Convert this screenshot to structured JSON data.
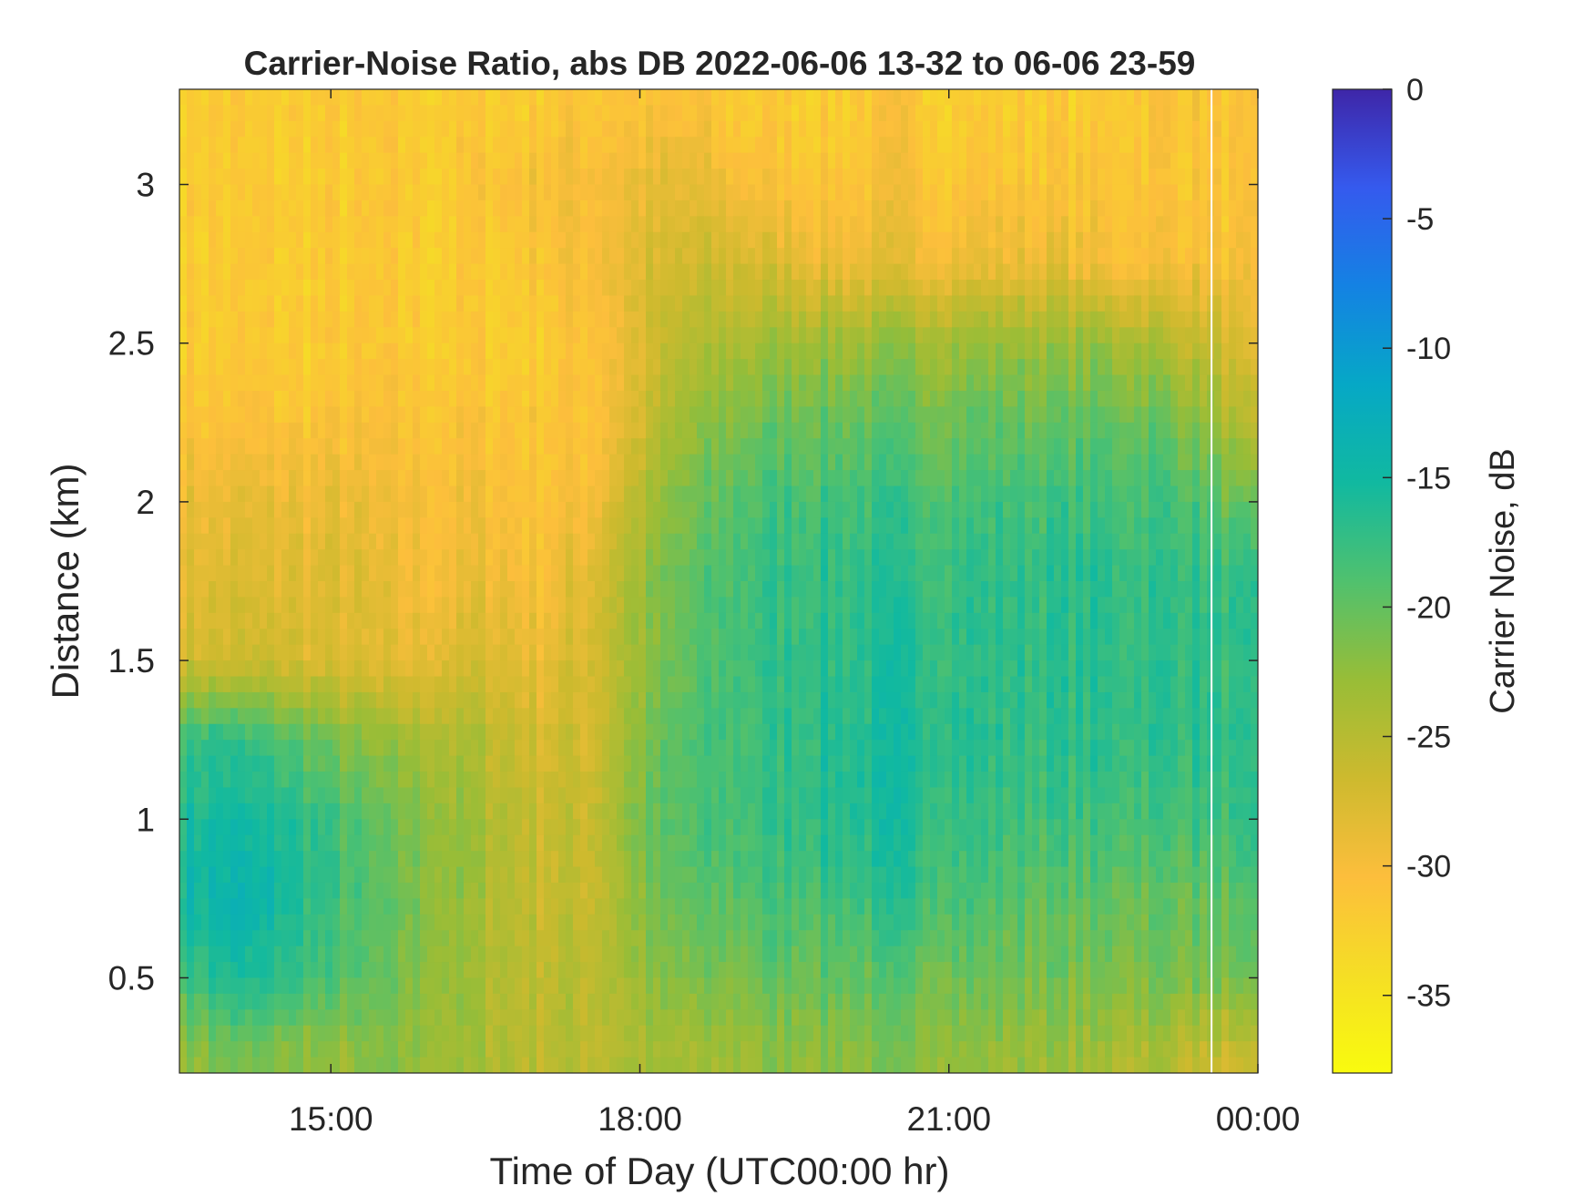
{
  "chart_data": {
    "type": "heatmap",
    "title": "Carrier-Noise Ratio, abs DB 2022-06-06 13-32 to 06-06 23-59",
    "xlabel": "Time of Day (UTC00:00 hr)",
    "ylabel": "Distance (km)",
    "colorbar_label": "Carrier Noise, dB",
    "x_unit": "hour of day",
    "xlim": [
      13.53,
      24.0
    ],
    "ylim": [
      0.2,
      3.3
    ],
    "clim": [
      -38,
      0
    ],
    "colormap": "parula",
    "grid": false,
    "x_ticks": [
      {
        "value": 15,
        "label": "15:00"
      },
      {
        "value": 18,
        "label": "18:00"
      },
      {
        "value": 21,
        "label": "21:00"
      },
      {
        "value": 24,
        "label": "00:00"
      }
    ],
    "y_ticks": [
      {
        "value": 0.5,
        "label": "0.5"
      },
      {
        "value": 1,
        "label": "1"
      },
      {
        "value": 1.5,
        "label": "1.5"
      },
      {
        "value": 2,
        "label": "2"
      },
      {
        "value": 2.5,
        "label": "2.5"
      },
      {
        "value": 3,
        "label": "3"
      }
    ],
    "colorbar_ticks": [
      {
        "value": 0,
        "label": "0"
      },
      {
        "value": -5,
        "label": "-5"
      },
      {
        "value": -10,
        "label": "-10"
      },
      {
        "value": -15,
        "label": "-15"
      },
      {
        "value": -20,
        "label": "-20"
      },
      {
        "value": -25,
        "label": "-25"
      },
      {
        "value": -30,
        "label": "-30"
      },
      {
        "value": -35,
        "label": "-35"
      }
    ],
    "gap_time": 23.55,
    "time_samples": [
      13.53,
      14.0,
      14.5,
      15.0,
      15.5,
      16.0,
      16.5,
      17.0,
      17.5,
      18.0,
      18.5,
      19.0,
      19.5,
      20.0,
      20.5,
      21.0,
      21.5,
      22.0,
      22.5,
      23.0,
      23.5,
      24.0
    ],
    "distance_samples": [
      0.25,
      0.5,
      0.75,
      1.0,
      1.25,
      1.5,
      1.75,
      2.0,
      2.25,
      2.5,
      2.75,
      3.0,
      3.25
    ],
    "cnr_db": [
      [
        -23,
        -21,
        -22,
        -23,
        -22,
        -23,
        -24,
        -25,
        -25,
        -24,
        -24,
        -23,
        -22,
        -22,
        -22,
        -22,
        -23,
        -23,
        -24,
        -24,
        -26,
        -28
      ],
      [
        -18,
        -16,
        -17,
        -19,
        -21,
        -22,
        -24,
        -25,
        -25,
        -23,
        -22,
        -21,
        -20,
        -20,
        -20,
        -20,
        -21,
        -21,
        -21,
        -21,
        -21,
        -22
      ],
      [
        -15,
        -14,
        -15,
        -18,
        -20,
        -22,
        -24,
        -26,
        -26,
        -22,
        -20,
        -19,
        -18,
        -18,
        -17,
        -18,
        -19,
        -20,
        -20,
        -20,
        -20,
        -20
      ],
      [
        -16,
        -15,
        -16,
        -18,
        -21,
        -22,
        -24,
        -26,
        -26,
        -21,
        -19,
        -18,
        -17,
        -16,
        -16,
        -17,
        -18,
        -18,
        -18,
        -18,
        -18,
        -18
      ],
      [
        -17,
        -17,
        -19,
        -21,
        -23,
        -24,
        -25,
        -27,
        -27,
        -22,
        -19,
        -18,
        -17,
        -16,
        -16,
        -16,
        -17,
        -17,
        -17,
        -17,
        -17,
        -18
      ],
      [
        -27,
        -27,
        -27,
        -28,
        -29,
        -28,
        -27,
        -29,
        -27,
        -23,
        -20,
        -18,
        -17,
        -17,
        -16,
        -17,
        -17,
        -17,
        -17,
        -17,
        -17,
        -18
      ],
      [
        -28,
        -28,
        -28,
        -28,
        -29,
        -30,
        -29,
        -30,
        -28,
        -23,
        -20,
        -18,
        -17,
        -17,
        -17,
        -17,
        -17,
        -17,
        -17,
        -17,
        -17,
        -18
      ],
      [
        -29,
        -29,
        -29,
        -29,
        -30,
        -30,
        -30,
        -31,
        -30,
        -25,
        -21,
        -19,
        -18,
        -18,
        -18,
        -18,
        -18,
        -18,
        -18,
        -18,
        -19,
        -22
      ],
      [
        -31,
        -31,
        -31,
        -31,
        -31,
        -31,
        -31,
        -31,
        -31,
        -27,
        -23,
        -21,
        -20,
        -20,
        -20,
        -20,
        -20,
        -20,
        -20,
        -20,
        -22,
        -27
      ],
      [
        -32,
        -32,
        -32,
        -32,
        -32,
        -32,
        -32,
        -32,
        -31,
        -28,
        -25,
        -24,
        -23,
        -23,
        -23,
        -23,
        -23,
        -23,
        -23,
        -24,
        -26,
        -30
      ],
      [
        -32,
        -32,
        -32,
        -32,
        -32,
        -32,
        -32,
        -31,
        -30,
        -28,
        -27,
        -27,
        -28,
        -29,
        -29,
        -29,
        -29,
        -29,
        -30,
        -30,
        -30,
        -31
      ],
      [
        -32,
        -32,
        -32,
        -32,
        -32,
        -32,
        -31,
        -30,
        -30,
        -29,
        -29,
        -30,
        -31,
        -31,
        -30,
        -31,
        -31,
        -31,
        -31,
        -31,
        -31,
        -32
      ],
      [
        -32,
        -32,
        -32,
        -32,
        -32,
        -32,
        -32,
        -32,
        -31,
        -31,
        -31,
        -32,
        -32,
        -32,
        -31,
        -32,
        -32,
        -32,
        -32,
        -31,
        -31,
        -32
      ]
    ]
  }
}
